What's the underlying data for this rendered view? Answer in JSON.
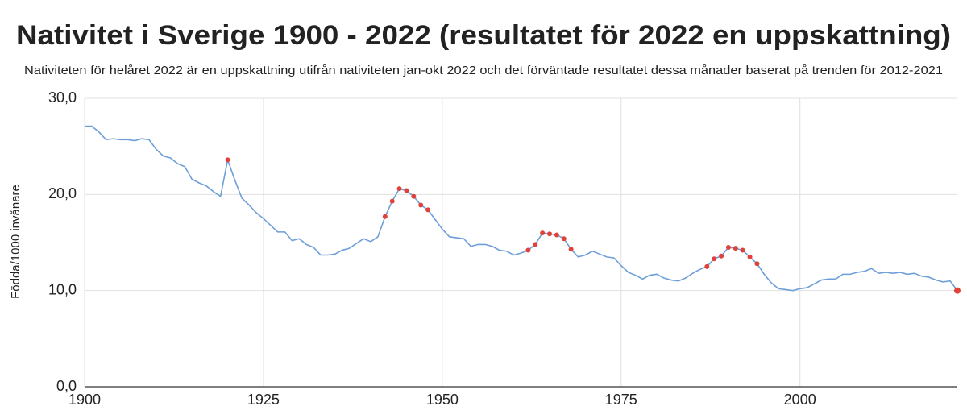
{
  "chart_data": {
    "type": "line",
    "title": "Nativitet i Sverige 1900 - 2022 (resultatet för 2022 en uppskattning)",
    "subtitle": "Nativiteten för helåret 2022 är en uppskattning utifrån nativiteten jan-okt 2022 och det förväntade resultatet dessa månader baserat på trenden för 2012-2021",
    "y_label": "Födda/1000 invånare",
    "x": [
      1900,
      1901,
      1902,
      1903,
      1904,
      1905,
      1906,
      1907,
      1908,
      1909,
      1910,
      1911,
      1912,
      1913,
      1914,
      1915,
      1916,
      1917,
      1918,
      1919,
      1920,
      1921,
      1922,
      1923,
      1924,
      1925,
      1926,
      1927,
      1928,
      1929,
      1930,
      1931,
      1932,
      1933,
      1934,
      1935,
      1936,
      1937,
      1938,
      1939,
      1940,
      1941,
      1942,
      1943,
      1944,
      1945,
      1946,
      1947,
      1948,
      1949,
      1950,
      1951,
      1952,
      1953,
      1954,
      1955,
      1956,
      1957,
      1958,
      1959,
      1960,
      1961,
      1962,
      1963,
      1964,
      1965,
      1966,
      1967,
      1968,
      1969,
      1970,
      1971,
      1972,
      1973,
      1974,
      1975,
      1976,
      1977,
      1978,
      1979,
      1980,
      1981,
      1982,
      1983,
      1984,
      1985,
      1986,
      1987,
      1988,
      1989,
      1990,
      1991,
      1992,
      1993,
      1994,
      1995,
      1996,
      1997,
      1998,
      1999,
      2000,
      2001,
      2002,
      2003,
      2004,
      2005,
      2006,
      2007,
      2008,
      2009,
      2010,
      2011,
      2012,
      2013,
      2014,
      2015,
      2016,
      2017,
      2018,
      2019,
      2020,
      2021,
      2022
    ],
    "values": [
      27.1,
      27.1,
      26.5,
      25.7,
      25.8,
      25.7,
      25.7,
      25.6,
      25.8,
      25.7,
      24.7,
      24.0,
      23.8,
      23.2,
      22.9,
      21.6,
      21.2,
      20.9,
      20.3,
      19.8,
      23.6,
      21.5,
      19.6,
      18.9,
      18.1,
      17.5,
      16.8,
      16.1,
      16.1,
      15.2,
      15.4,
      14.8,
      14.5,
      13.7,
      13.7,
      13.8,
      14.2,
      14.4,
      14.9,
      15.4,
      15.1,
      15.6,
      17.7,
      19.3,
      20.6,
      20.4,
      19.8,
      18.9,
      18.4,
      17.4,
      16.4,
      15.6,
      15.5,
      15.4,
      14.6,
      14.8,
      14.8,
      14.6,
      14.2,
      14.1,
      13.7,
      13.9,
      14.2,
      14.8,
      16.0,
      15.9,
      15.8,
      15.4,
      14.3,
      13.5,
      13.7,
      14.1,
      13.8,
      13.5,
      13.4,
      12.6,
      11.9,
      11.6,
      11.2,
      11.6,
      11.7,
      11.3,
      11.1,
      11.0,
      11.3,
      11.8,
      12.2,
      12.5,
      13.3,
      13.6,
      14.5,
      14.4,
      14.2,
      13.5,
      12.8,
      11.7,
      10.8,
      10.2,
      10.1,
      10.0,
      10.2,
      10.3,
      10.7,
      11.1,
      11.2,
      11.2,
      11.7,
      11.7,
      11.9,
      12.0,
      12.3,
      11.8,
      11.9,
      11.8,
      11.9,
      11.7,
      11.8,
      11.5,
      11.4,
      11.1,
      10.9,
      11.0,
      10.0
    ],
    "color": "#6f9fd8",
    "highlight_x": [
      1920,
      1942,
      1943,
      1944,
      1945,
      1946,
      1947,
      1948,
      1962,
      1963,
      1964,
      1965,
      1966,
      1967,
      1968,
      1987,
      1988,
      1989,
      1990,
      1991,
      1992,
      1993,
      1994,
      2022
    ],
    "highlight_color": "#e0413a",
    "xlim": [
      1900,
      2022
    ],
    "xticks": [
      1900,
      1925,
      1950,
      1975,
      2000
    ],
    "ylim": [
      0,
      30
    ],
    "yticks": [
      {
        "value": 0,
        "label": "0,0"
      },
      {
        "value": 10,
        "label": "10,0"
      },
      {
        "value": 20,
        "label": "20,0"
      },
      {
        "value": 30,
        "label": "30,0"
      }
    ],
    "grid": true
  }
}
